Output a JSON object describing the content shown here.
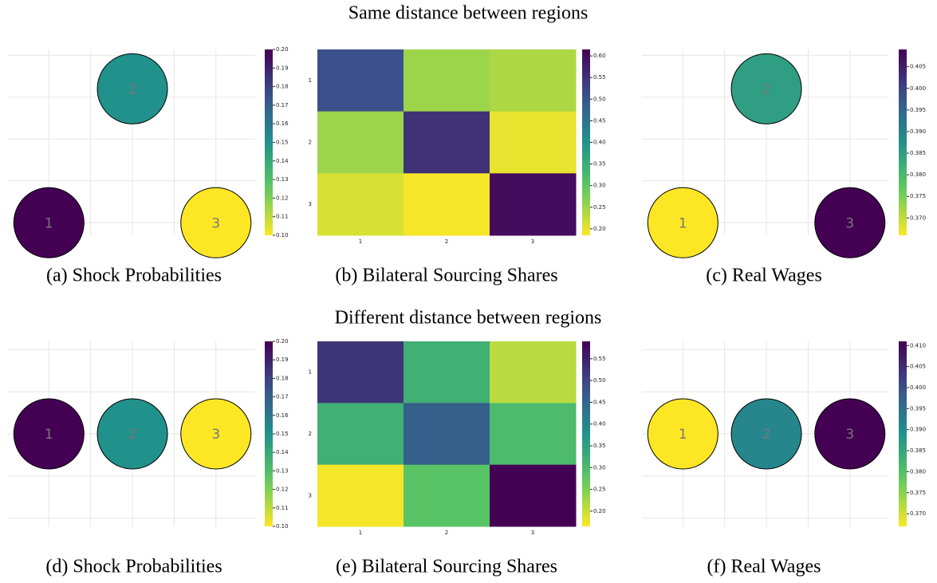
{
  "section_titles": [
    "Same distance between regions",
    "Different distance between regions"
  ],
  "chart_data": [
    {
      "type": "nodes",
      "caption": "(a) Shock Probabilities",
      "categories": [
        "1",
        "2",
        "3"
      ],
      "x": [
        0,
        1,
        2
      ],
      "y": [
        0,
        1.6,
        0
      ],
      "values": [
        0.2,
        0.15,
        0.1
      ],
      "xlim": [
        -0.49,
        2.47
      ],
      "ylim": [
        -0.15,
        2.07
      ],
      "grid": true,
      "colormap": "viridis",
      "reverse": true,
      "clim": [
        0.1,
        0.2
      ],
      "cticks": [
        {
          "value": 0.1,
          "label": "0.10"
        },
        0.11,
        0.12,
        0.13,
        0.14,
        0.15,
        0.16,
        0.17,
        0.18,
        0.19,
        {
          "value": 0.2,
          "label": "0.20"
        }
      ]
    },
    {
      "type": "heatmap",
      "caption": "(b) Bilateral Sourcing Shares",
      "x_categories": [
        "1",
        "2",
        "3"
      ],
      "y_categories": [
        "1",
        "2",
        "3"
      ],
      "z": [
        [
          0.51,
          0.25,
          0.24
        ],
        [
          0.25,
          0.55,
          0.2
        ],
        [
          0.21,
          0.19,
          0.6
        ]
      ],
      "colormap": "viridis",
      "reverse": true,
      "clim": [
        0.185,
        0.615
      ],
      "cticks": [
        {
          "value": 0.2,
          "label": "0.20"
        },
        0.25,
        {
          "value": 0.3,
          "label": "0.30"
        },
        0.35,
        {
          "value": 0.4,
          "label": "0.40"
        },
        0.45,
        {
          "value": 0.5,
          "label": "0.50"
        },
        0.55,
        {
          "value": 0.6,
          "label": "0.60"
        }
      ]
    },
    {
      "type": "nodes",
      "caption": "(c) Real Wages",
      "categories": [
        "1",
        "2",
        "3"
      ],
      "x": [
        0,
        1,
        2
      ],
      "y": [
        0,
        1.6,
        0
      ],
      "values": [
        0.366,
        0.385,
        0.409
      ],
      "xlim": [
        -0.49,
        2.47
      ],
      "ylim": [
        -0.15,
        2.07
      ],
      "grid": true,
      "colormap": "viridis",
      "reverse": true,
      "clim": [
        0.366,
        0.409
      ],
      "cticks": [
        {
          "value": 0.37,
          "label": "0.370"
        },
        0.375,
        {
          "value": 0.38,
          "label": "0.380"
        },
        0.385,
        {
          "value": 0.39,
          "label": "0.390"
        },
        0.395,
        {
          "value": 0.4,
          "label": "0.400"
        },
        0.405
      ]
    },
    {
      "type": "nodes",
      "caption": "(d) Shock Probabilities",
      "categories": [
        "1",
        "2",
        "3"
      ],
      "x": [
        0,
        1,
        2
      ],
      "y": [
        0,
        0,
        0
      ],
      "values": [
        0.2,
        0.15,
        0.1
      ],
      "xlim": [
        -0.49,
        2.47
      ],
      "ylim": [
        -1.1,
        1.1
      ],
      "grid": true,
      "colormap": "viridis",
      "reverse": true,
      "clim": [
        0.1,
        0.2
      ],
      "cticks": [
        {
          "value": 0.1,
          "label": "0.10"
        },
        0.11,
        0.12,
        0.13,
        0.14,
        0.15,
        0.16,
        0.17,
        0.18,
        0.19,
        {
          "value": 0.2,
          "label": "0.20"
        }
      ]
    },
    {
      "type": "heatmap",
      "caption": "(e) Bilateral Sourcing Shares",
      "x_categories": [
        "1",
        "2",
        "3"
      ],
      "y_categories": [
        "1",
        "2",
        "3"
      ],
      "z": [
        [
          0.52,
          0.32,
          0.21
        ],
        [
          0.32,
          0.46,
          0.3
        ],
        [
          0.17,
          0.28,
          0.59
        ]
      ],
      "colormap": "viridis",
      "reverse": true,
      "clim": [
        0.165,
        0.59
      ],
      "cticks": [
        {
          "value": 0.2,
          "label": "0.20"
        },
        0.25,
        {
          "value": 0.3,
          "label": "0.30"
        },
        0.35,
        {
          "value": 0.4,
          "label": "0.40"
        },
        0.45,
        {
          "value": 0.5,
          "label": "0.50"
        },
        0.55
      ]
    },
    {
      "type": "nodes",
      "caption": "(f) Real Wages",
      "categories": [
        "1",
        "2",
        "3"
      ],
      "x": [
        0,
        1,
        2
      ],
      "y": [
        0,
        0,
        0
      ],
      "values": [
        0.367,
        0.391,
        0.411
      ],
      "xlim": [
        -0.49,
        2.47
      ],
      "ylim": [
        -1.1,
        1.1
      ],
      "grid": true,
      "colormap": "viridis",
      "reverse": true,
      "clim": [
        0.367,
        0.411
      ],
      "cticks": [
        {
          "value": 0.37,
          "label": "0.370"
        },
        0.375,
        {
          "value": 0.38,
          "label": "0.380"
        },
        0.385,
        {
          "value": 0.39,
          "label": "0.390"
        },
        0.395,
        {
          "value": 0.4,
          "label": "0.400"
        },
        0.405,
        {
          "value": 0.41,
          "label": "0.410"
        }
      ]
    }
  ]
}
